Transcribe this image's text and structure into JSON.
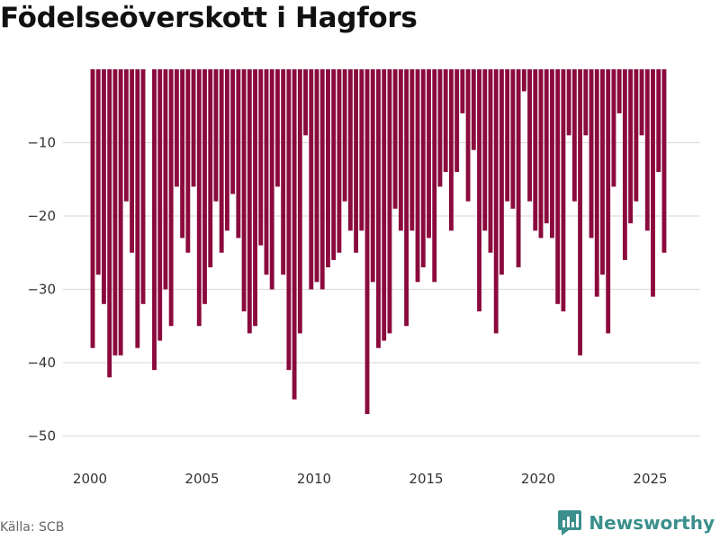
{
  "title": "Födelseöverskott i Hagfors",
  "source": "Källa: SCB",
  "brand": {
    "name": "Newsworthy",
    "icon": "newsworthy-chart-icon",
    "color": "#3a8f8c"
  },
  "colors": {
    "bar": "#8b0a3d",
    "grid": "#dddddd",
    "axis_text": "#333333"
  },
  "chart_data": {
    "type": "bar",
    "title": "Födelseöverskott i Hagfors",
    "xlabel": "",
    "ylabel": "",
    "x_unit": "quarter",
    "x_start": "2000-Q1",
    "xlim": [
      1998.8,
      2026.3
    ],
    "ylim": [
      -54,
      0
    ],
    "yticks": [
      -10,
      -20,
      -30,
      -40,
      -50
    ],
    "ytick_labels": [
      "−10",
      "−20",
      "−30",
      "−40",
      "−50"
    ],
    "xticks": [
      2000,
      2005,
      2010,
      2015,
      2020,
      2025
    ],
    "xtick_labels": [
      "2000",
      "2005",
      "2010",
      "2015",
      "2020",
      "2025"
    ],
    "grid": true,
    "legend": "none",
    "series": [
      {
        "values": [
          -38,
          -28,
          -32,
          -42,
          -39,
          -39,
          -18,
          -25,
          -38,
          -32,
          0,
          -41,
          -37,
          -30,
          -35,
          -16,
          -23,
          -25,
          -16,
          -35,
          -32,
          -27,
          -18,
          -25,
          -22,
          -17,
          -23,
          -33,
          -36,
          -35,
          -24,
          -28,
          -30,
          -16,
          -28,
          -41,
          -45,
          -36,
          -9,
          -30,
          -29,
          -30,
          -27,
          -26,
          -25,
          -18,
          -22,
          -25,
          -22,
          -47,
          -29,
          -38,
          -37,
          -36,
          -19,
          -22,
          -35,
          -22,
          -29,
          -27,
          -23,
          -29,
          -16,
          -14,
          -22,
          -14,
          -6,
          -18,
          -11,
          -33,
          -22,
          -25,
          -36,
          -28,
          -18,
          -19,
          -27,
          -3,
          -18,
          -22,
          -23,
          -21,
          -23,
          -32,
          -33,
          -9,
          -18,
          -39,
          -9,
          -23,
          -31,
          -28,
          -36,
          -16,
          -6,
          -26,
          -21,
          -18,
          -9,
          -22,
          -31,
          -14,
          -25
        ]
      }
    ]
  }
}
